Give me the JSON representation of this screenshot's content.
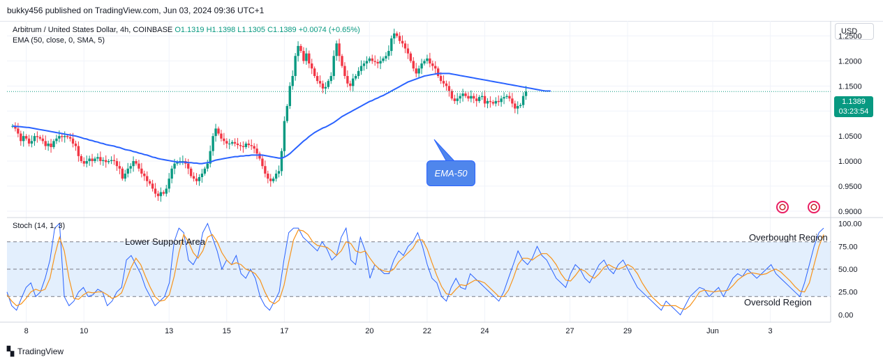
{
  "header": {
    "published": "bukky456 published on TradingView.com, Jun 03, 2024 09:36 UTC+1"
  },
  "legend": {
    "symbol": "Arbitrum / United States Dollar, 4h, COINBASE",
    "o": "O1.1319",
    "h": "H1.1398",
    "l": "L1.1305",
    "c": "C1.1389",
    "change": "+0.0074 (+0.65%)",
    "ema": "EMA (50, close, 0, SMA, 5)"
  },
  "currency": "USD",
  "last_price": {
    "value": "1.1389",
    "countdown": "03:23:54"
  },
  "stoch_legend": "Stoch (14, 1, 3)",
  "annotations": {
    "ema_label": "EMA-50",
    "lower_support": "Lower Support Area",
    "overbought": "Overbought Region",
    "oversold": "Oversold Region"
  },
  "footer": {
    "brand": "TradingView"
  },
  "colors": {
    "up": "#089981",
    "down": "#f23645",
    "ema": "#2962ff",
    "k": "#2962ff",
    "d": "#f7931a",
    "band": "#e3effd"
  },
  "chart_data": [
    {
      "type": "candlestick",
      "ylim": [
        0.89,
        1.28
      ],
      "y_ticks": [
        "1.2500",
        "1.2000",
        "1.1500",
        "1.1000",
        "1.0500",
        "1.0000",
        "0.9500",
        "0.9000"
      ],
      "x_ticks": [
        "8",
        "10",
        "13",
        "15",
        "17",
        "20",
        "22",
        "24",
        "27",
        "29",
        "Jun",
        "3"
      ],
      "x_tick_index": [
        5,
        26,
        57,
        78,
        99,
        130,
        151,
        172,
        203,
        224,
        255,
        276
      ],
      "close": [
        1.07,
        1.065,
        1.055,
        1.04,
        1.05,
        1.045,
        1.035,
        1.04,
        1.05,
        1.048,
        1.045,
        1.04,
        1.03,
        1.035,
        1.028,
        1.04,
        1.045,
        1.05,
        1.048,
        1.05,
        1.048,
        1.045,
        1.035,
        1.03,
        1.01,
        1.0,
        0.995,
        1.0,
        1.005,
        1.0,
        1.005,
        1.008,
        1.0,
        1.002,
        0.998,
        1.0,
        1.002,
        1.0,
        0.99,
        0.985,
        0.965,
        0.975,
        0.985,
        0.99,
        1.0,
        0.995,
        0.985,
        0.975,
        0.97,
        0.96,
        0.955,
        0.945,
        0.935,
        0.93,
        0.938,
        0.935,
        0.945,
        0.965,
        0.985,
        0.995,
        0.998,
        1.0,
        1.0,
        0.995,
        0.985,
        0.97,
        0.965,
        0.96,
        0.968,
        0.975,
        0.985,
        0.995,
        1.02,
        1.05,
        1.065,
        1.055,
        1.045,
        1.04,
        1.035,
        1.035,
        1.038,
        1.035,
        1.032,
        1.03,
        1.028,
        1.035,
        1.032,
        1.03,
        1.025,
        1.015,
        1.005,
        0.99,
        0.975,
        0.965,
        0.96,
        0.965,
        0.975,
        0.98,
        1.02,
        1.08,
        1.11,
        1.15,
        1.17,
        1.21,
        1.23,
        1.22,
        1.2,
        1.215,
        1.195,
        1.185,
        1.17,
        1.16,
        1.155,
        1.145,
        1.148,
        1.16,
        1.17,
        1.21,
        1.235,
        1.21,
        1.19,
        1.17,
        1.155,
        1.15,
        1.165,
        1.17,
        1.18,
        1.19,
        1.195,
        1.2,
        1.205,
        1.2,
        1.198,
        1.195,
        1.2,
        1.205,
        1.21,
        1.22,
        1.245,
        1.255,
        1.25,
        1.24,
        1.235,
        1.225,
        1.215,
        1.2,
        1.185,
        1.175,
        1.185,
        1.195,
        1.2,
        1.205,
        1.195,
        1.19,
        1.185,
        1.17,
        1.16,
        1.155,
        1.15,
        1.14,
        1.125,
        1.12,
        1.125,
        1.13,
        1.135,
        1.13,
        1.125,
        1.13,
        1.125,
        1.12,
        1.128,
        1.13,
        1.115,
        1.12,
        1.118,
        1.115,
        1.12,
        1.118,
        1.125,
        1.128,
        1.13,
        1.125,
        1.115,
        1.105,
        1.11,
        1.112,
        1.13,
        1.1389
      ],
      "ema": [
        1.07,
        1.0695,
        1.069,
        1.0685,
        1.068,
        1.0675,
        1.067,
        1.066,
        1.065,
        1.064,
        1.063,
        1.062,
        1.061,
        1.06,
        1.059,
        1.058,
        1.057,
        1.056,
        1.055,
        1.054,
        1.053,
        1.052,
        1.051,
        1.05,
        1.0485,
        1.047,
        1.045,
        1.044,
        1.042,
        1.041,
        1.039,
        1.038,
        1.036,
        1.035,
        1.033,
        1.032,
        1.031,
        1.03,
        1.028,
        1.027,
        1.025,
        1.023,
        1.022,
        1.021,
        1.019,
        1.018,
        1.016,
        1.015,
        1.013,
        1.012,
        1.01,
        1.008,
        1.007,
        1.005,
        1.004,
        1.003,
        1.002,
        1.001,
        1.0,
        0.999,
        0.998,
        0.998,
        0.998,
        0.998,
        0.997,
        0.997,
        0.996,
        0.996,
        0.995,
        0.995,
        0.996,
        0.997,
        0.998,
        1.0,
        1.002,
        1.003,
        1.004,
        1.005,
        1.006,
        1.007,
        1.008,
        1.009,
        1.009,
        1.01,
        1.01,
        1.011,
        1.011,
        1.012,
        1.012,
        1.012,
        1.012,
        1.012,
        1.011,
        1.01,
        1.009,
        1.008,
        1.007,
        1.006,
        1.006,
        1.008,
        1.011,
        1.015,
        1.02,
        1.025,
        1.03,
        1.035,
        1.04,
        1.044,
        1.049,
        1.053,
        1.057,
        1.06,
        1.063,
        1.066,
        1.068,
        1.071,
        1.074,
        1.077,
        1.081,
        1.085,
        1.089,
        1.092,
        1.095,
        1.098,
        1.101,
        1.104,
        1.107,
        1.11,
        1.113,
        1.116,
        1.119,
        1.121,
        1.124,
        1.126,
        1.129,
        1.131,
        1.134,
        1.137,
        1.14,
        1.143,
        1.146,
        1.149,
        1.152,
        1.155,
        1.158,
        1.16,
        1.162,
        1.164,
        1.166,
        1.168,
        1.17,
        1.171,
        1.172,
        1.173,
        1.174,
        1.175,
        1.175,
        1.175,
        1.175,
        1.175,
        1.174,
        1.173,
        1.172,
        1.171,
        1.17,
        1.169,
        1.168,
        1.167,
        1.166,
        1.165,
        1.164,
        1.163,
        1.162,
        1.161,
        1.16,
        1.159,
        1.158,
        1.157,
        1.156,
        1.155,
        1.154,
        1.153,
        1.152,
        1.151,
        1.15,
        1.149,
        1.148,
        1.147,
        1.146,
        1.145,
        1.144,
        1.143,
        1.142,
        1.141,
        1.14,
        1.14,
        1.14
      ]
    },
    {
      "type": "line",
      "name": "Stoch (14, 1, 3)",
      "ylim": [
        -5,
        105
      ],
      "y_ticks": [
        100,
        75,
        50,
        25,
        0
      ],
      "bands": [
        80,
        50,
        20
      ],
      "k": [
        25,
        10,
        5,
        18,
        30,
        35,
        20,
        25,
        40,
        60,
        95,
        100,
        20,
        10,
        15,
        25,
        30,
        20,
        22,
        28,
        25,
        10,
        15,
        25,
        30,
        60,
        65,
        55,
        45,
        30,
        20,
        10,
        15,
        20,
        35,
        80,
        95,
        90,
        60,
        55,
        65,
        90,
        100,
        85,
        70,
        50,
        60,
        55,
        65,
        45,
        40,
        50,
        40,
        20,
        10,
        5,
        15,
        25,
        60,
        90,
        95,
        95,
        85,
        80,
        75,
        70,
        80,
        72,
        60,
        65,
        85,
        95,
        60,
        55,
        85,
        70,
        40,
        55,
        50,
        45,
        45,
        60,
        70,
        65,
        75,
        80,
        90,
        75,
        55,
        40,
        35,
        20,
        15,
        30,
        40,
        30,
        28,
        45,
        40,
        35,
        30,
        25,
        20,
        15,
        25,
        40,
        55,
        70,
        60,
        55,
        62,
        75,
        65,
        60,
        50,
        40,
        35,
        30,
        45,
        55,
        50,
        40,
        35,
        45,
        55,
        60,
        50,
        45,
        55,
        60,
        50,
        40,
        30,
        25,
        20,
        15,
        10,
        5,
        15,
        10,
        5,
        0,
        10,
        20,
        25,
        30,
        28,
        20,
        25,
        30,
        20,
        30,
        40,
        45,
        42,
        50,
        45,
        40,
        45,
        50,
        55,
        45,
        40,
        35,
        30,
        25,
        20,
        35,
        55,
        75,
        90,
        95
      ],
      "d": [
        22,
        15,
        10,
        12,
        18,
        25,
        28,
        26,
        28,
        40,
        65,
        85,
        70,
        40,
        18,
        17,
        22,
        25,
        24,
        25,
        25,
        22,
        18,
        20,
        24,
        38,
        52,
        62,
        55,
        42,
        30,
        20,
        15,
        16,
        22,
        42,
        68,
        88,
        80,
        68,
        62,
        70,
        85,
        88,
        80,
        68,
        60,
        55,
        57,
        55,
        50,
        48,
        45,
        38,
        25,
        15,
        12,
        16,
        32,
        58,
        82,
        93,
        92,
        88,
        80,
        76,
        75,
        74,
        70,
        65,
        70,
        80,
        78,
        70,
        68,
        70,
        62,
        55,
        50,
        48,
        47,
        50,
        58,
        63,
        68,
        73,
        82,
        82,
        72,
        57,
        43,
        31,
        23,
        22,
        28,
        33,
        32,
        35,
        38,
        37,
        35,
        30,
        25,
        20,
        20,
        27,
        40,
        55,
        62,
        62,
        60,
        64,
        67,
        67,
        62,
        55,
        45,
        38,
        37,
        43,
        50,
        48,
        43,
        40,
        45,
        52,
        55,
        52,
        50,
        52,
        55,
        52,
        45,
        35,
        27,
        20,
        15,
        10,
        10,
        10,
        10,
        7,
        6,
        10,
        17,
        25,
        27,
        26,
        25,
        26,
        26,
        27,
        32,
        38,
        42,
        45,
        46,
        45,
        44,
        45,
        48,
        50,
        47,
        42,
        37,
        31,
        26,
        25,
        35,
        55,
        75,
        88
      ]
    }
  ]
}
